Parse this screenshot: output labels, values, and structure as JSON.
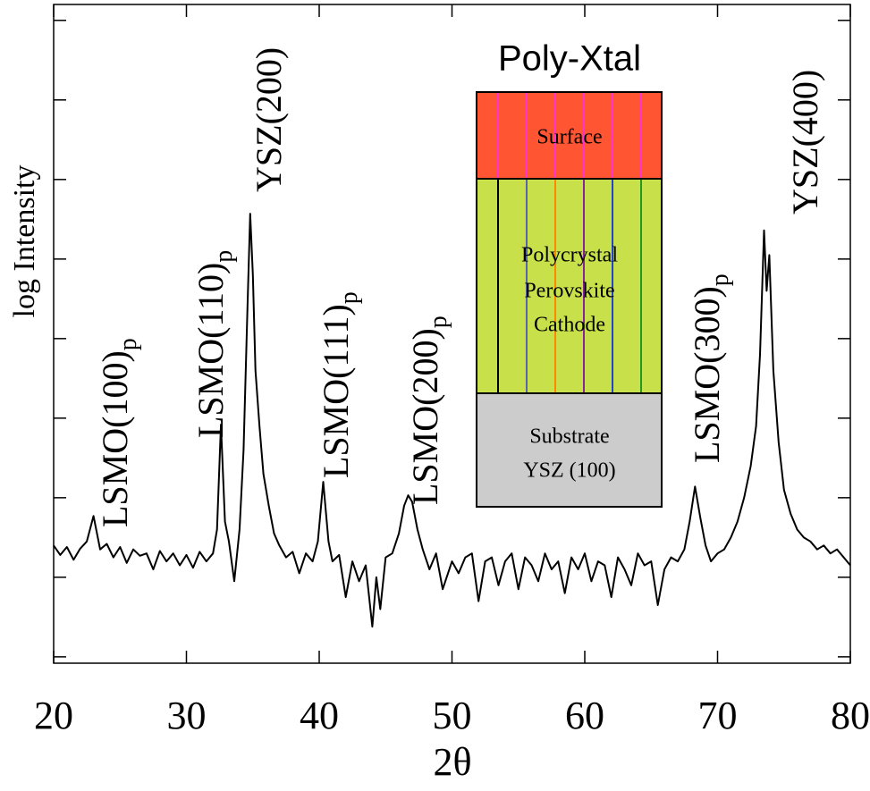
{
  "chart_data": {
    "type": "line",
    "xlabel": "2θ",
    "ylabel": "log Intensity",
    "xlim": [
      20,
      80
    ],
    "xticks": [
      20,
      30,
      40,
      50,
      60,
      70,
      80
    ],
    "ylim": [
      -0.08,
      8.2
    ],
    "yticks": [
      0,
      1,
      2,
      3,
      4,
      5,
      6,
      7,
      8
    ],
    "color": "#000000",
    "x": [
      20,
      20.5,
      21,
      21.5,
      22,
      22.5,
      23,
      23.5,
      24,
      24.5,
      25,
      25.5,
      26,
      26.5,
      27,
      27.5,
      28,
      28.5,
      29,
      29.5,
      30,
      30.5,
      31,
      31.5,
      32,
      32.3,
      32.6,
      32.9,
      33.2,
      33.6,
      34,
      34.3,
      34.6,
      34.8,
      35,
      35.2,
      35.5,
      35.8,
      36.2,
      36.6,
      37,
      37.5,
      38,
      38.5,
      39,
      39.5,
      39.9,
      40.3,
      40.7,
      41,
      41.5,
      42,
      42.5,
      43,
      43.5,
      44,
      44.3,
      44.6,
      45,
      45.5,
      46,
      46.4,
      46.7,
      47,
      47.4,
      47.8,
      48.3,
      48.8,
      49.3,
      50,
      50.5,
      51,
      51.5,
      52,
      52.5,
      53,
      53.5,
      54,
      54.5,
      55,
      55.5,
      56,
      56.5,
      57,
      57.5,
      58,
      58.5,
      59,
      59.5,
      60,
      60.5,
      61,
      61.5,
      62,
      62.5,
      63,
      63.5,
      64,
      64.5,
      65,
      65.5,
      66,
      66.5,
      67,
      67.5,
      67.9,
      68.3,
      68.7,
      69.1,
      69.5,
      70,
      70.5,
      71,
      71.5,
      72,
      72.5,
      72.9,
      73.2,
      73.5,
      73.7,
      73.9,
      74.2,
      74.6,
      75,
      75.5,
      76,
      76.5,
      77,
      77.5,
      78,
      78.5,
      79,
      79.5,
      80
    ],
    "values": [
      1.4,
      1.28,
      1.38,
      1.22,
      1.36,
      1.45,
      1.77,
      1.35,
      1.42,
      1.25,
      1.38,
      1.18,
      1.35,
      1.27,
      1.3,
      1.1,
      1.33,
      1.2,
      1.3,
      1.15,
      1.28,
      1.12,
      1.32,
      1.2,
      1.3,
      1.6,
      2.92,
      1.7,
      1.45,
      0.95,
      1.6,
      2.6,
      4.4,
      5.57,
      4.8,
      3.6,
      2.9,
      2.3,
      1.9,
      1.55,
      1.4,
      1.25,
      1.32,
      1.05,
      1.3,
      1.2,
      1.45,
      2.2,
      1.45,
      1.2,
      1.28,
      0.75,
      1.2,
      0.95,
      1.15,
      0.38,
      1.0,
      0.6,
      1.25,
      1.3,
      1.55,
      1.9,
      2.03,
      1.95,
      1.6,
      1.35,
      1.1,
      1.3,
      0.85,
      1.2,
      1.05,
      1.25,
      1.3,
      0.7,
      1.2,
      1.25,
      0.9,
      1.2,
      1.3,
      0.85,
      1.25,
      1.15,
      0.95,
      1.3,
      1.1,
      1.2,
      0.8,
      1.25,
      1.1,
      1.3,
      0.95,
      1.2,
      1.15,
      0.75,
      1.25,
      1.1,
      0.9,
      1.3,
      1.15,
      1.2,
      0.65,
      1.1,
      1.25,
      1.2,
      1.35,
      1.7,
      2.14,
      1.75,
      1.4,
      1.2,
      1.3,
      1.35,
      1.5,
      1.7,
      2.0,
      2.4,
      2.9,
      3.8,
      5.36,
      4.6,
      5.05,
      3.6,
      2.7,
      2.1,
      1.8,
      1.6,
      1.5,
      1.45,
      1.35,
      1.4,
      1.3,
      1.35,
      1.25,
      1.15
    ],
    "annotations": [
      {
        "text": "LSMO(100)",
        "sub": "p"
      },
      {
        "text": "LSMO(110)",
        "sub": "p"
      },
      {
        "text": "YSZ(200)"
      },
      {
        "text": "LSMO(111)",
        "sub": "p"
      },
      {
        "text": "LSMO(200)",
        "sub": "p"
      },
      {
        "text": "LSMO(300)",
        "sub": "p"
      },
      {
        "text": "YSZ(400)"
      }
    ],
    "inset": {
      "title": "Poly-Xtal",
      "surface": "Surface",
      "cathode": [
        "Polycrystal",
        "Perovskite",
        "Cathode"
      ],
      "substrate": [
        "Substrate",
        "YSZ (100)"
      ]
    }
  }
}
